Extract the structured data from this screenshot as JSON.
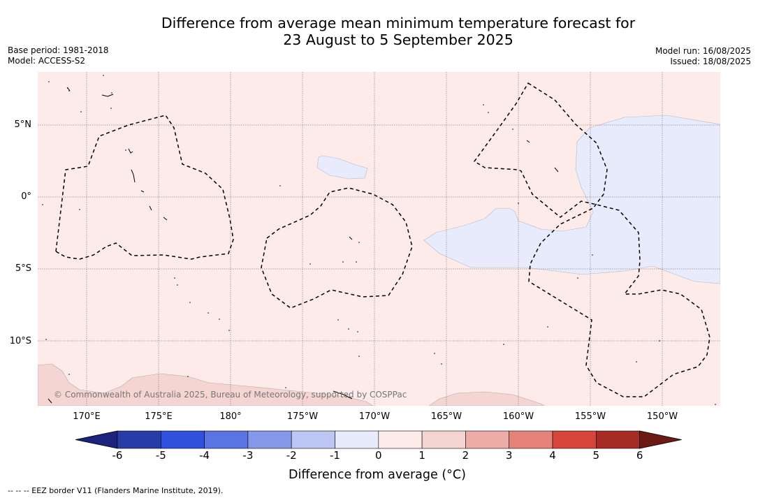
{
  "title_line1": "Difference from average mean minimum temperature forecast for",
  "title_line2": "23 August to 5 September 2025",
  "base_period": "Base period: 1981-2018",
  "model": "Model: ACCESS-S2",
  "model_run": "Model run: 16/08/2025",
  "issued": "Issued: 18/08/2025",
  "lat_labels": [
    "5°N",
    "0°",
    "5°S",
    "10°S"
  ],
  "lon_labels": [
    "170°E",
    "175°E",
    "180°",
    "175°W",
    "170°W",
    "165°W",
    "160°W",
    "155°W",
    "150°W"
  ],
  "credit": "© Commonwealth of Australia 2025, Bureau of Meteorology, supported by COSPPac",
  "colorbar": {
    "ticks": [
      "-6",
      "-5",
      "-4",
      "-3",
      "-2",
      "-1",
      "0",
      "1",
      "2",
      "3",
      "4",
      "5",
      "6"
    ],
    "colors": [
      "#1a237e",
      "#283ca8",
      "#2f51de",
      "#5a74e2",
      "#8797ea",
      "#bec6f4",
      "#e8ebfb",
      "#fcebe8",
      "#f5d5d1",
      "#edaca5",
      "#e5837b",
      "#d6453c",
      "#a52b24",
      "#6d1a15"
    ],
    "label": "Difference from average (°C)"
  },
  "footnote": "--  --  -- EEZ border V11 (Flanders Marine Institute, 2019).",
  "map_colors": {
    "background": "#fcebe8",
    "cool_anomaly": "#e8ebfb",
    "warm_anomaly": "#f5d5d1",
    "eez_border": "#000000"
  }
}
